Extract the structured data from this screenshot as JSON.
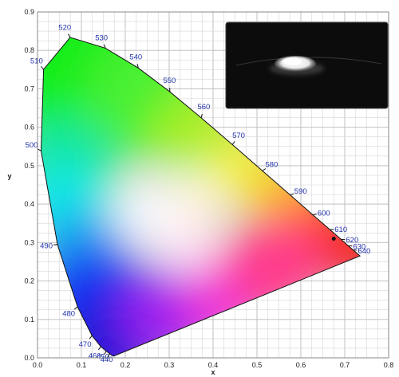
{
  "chart_data": {
    "type": "scatter",
    "title": "",
    "xlabel": "x",
    "ylabel": "y",
    "xlim": [
      0.0,
      0.8
    ],
    "ylim": [
      0.0,
      0.9
    ],
    "x_ticks": [
      "0.0",
      "0.1",
      "0.2",
      "0.3",
      "0.4",
      "0.5",
      "0.6",
      "0.7",
      "0.8"
    ],
    "y_ticks": [
      "0.0",
      "0.1",
      "0.2",
      "0.3",
      "0.4",
      "0.5",
      "0.6",
      "0.7",
      "0.8",
      "0.9"
    ],
    "grid": true,
    "spectral_locus": {
      "x": [
        0.1741,
        0.1738,
        0.1733,
        0.1726,
        0.1714,
        0.1689,
        0.1644,
        0.1566,
        0.144,
        0.1241,
        0.0913,
        0.0454,
        0.0082,
        0.0139,
        0.0743,
        0.1547,
        0.2296,
        0.3016,
        0.3731,
        0.4441,
        0.5125,
        0.5752,
        0.627,
        0.6658,
        0.6915,
        0.7079,
        0.719,
        0.7347
      ],
      "y": [
        0.005,
        0.0049,
        0.0048,
        0.0048,
        0.0051,
        0.0069,
        0.0109,
        0.0177,
        0.0297,
        0.0578,
        0.1327,
        0.295,
        0.5384,
        0.7502,
        0.8338,
        0.8059,
        0.7543,
        0.6923,
        0.6245,
        0.5547,
        0.4866,
        0.4242,
        0.3725,
        0.334,
        0.3083,
        0.292,
        0.2809,
        0.2653
      ]
    },
    "wavelength_labels": [
      {
        "text": "440",
        "x": 0.1644,
        "y": 0.0109
      },
      {
        "text": "450",
        "x": 0.1566,
        "y": 0.0177
      },
      {
        "text": "460",
        "x": 0.144,
        "y": 0.0297
      },
      {
        "text": "470",
        "x": 0.1241,
        "y": 0.0578
      },
      {
        "text": "480",
        "x": 0.0913,
        "y": 0.1327
      },
      {
        "text": "490",
        "x": 0.0454,
        "y": 0.295
      },
      {
        "text": "500",
        "x": 0.0082,
        "y": 0.5384
      },
      {
        "text": "510",
        "x": 0.0139,
        "y": 0.7502
      },
      {
        "text": "520",
        "x": 0.0743,
        "y": 0.8338
      },
      {
        "text": "530",
        "x": 0.1547,
        "y": 0.8059
      },
      {
        "text": "540",
        "x": 0.2296,
        "y": 0.7543
      },
      {
        "text": "550",
        "x": 0.3016,
        "y": 0.6923
      },
      {
        "text": "560",
        "x": 0.3731,
        "y": 0.6245
      },
      {
        "text": "570",
        "x": 0.4441,
        "y": 0.5547
      },
      {
        "text": "580",
        "x": 0.5125,
        "y": 0.4866
      },
      {
        "text": "590",
        "x": 0.5752,
        "y": 0.4242
      },
      {
        "text": "600",
        "x": 0.627,
        "y": 0.3725
      },
      {
        "text": "610",
        "x": 0.6658,
        "y": 0.334
      },
      {
        "text": "620",
        "x": 0.6915,
        "y": 0.3083
      },
      {
        "text": "630",
        "x": 0.7079,
        "y": 0.292
      },
      {
        "text": "640",
        "x": 0.719,
        "y": 0.2809
      }
    ],
    "series": [
      {
        "x": [
          0.675
        ],
        "y": [
          0.31
        ]
      }
    ],
    "inset_photo": "white powder sample on dark background"
  }
}
